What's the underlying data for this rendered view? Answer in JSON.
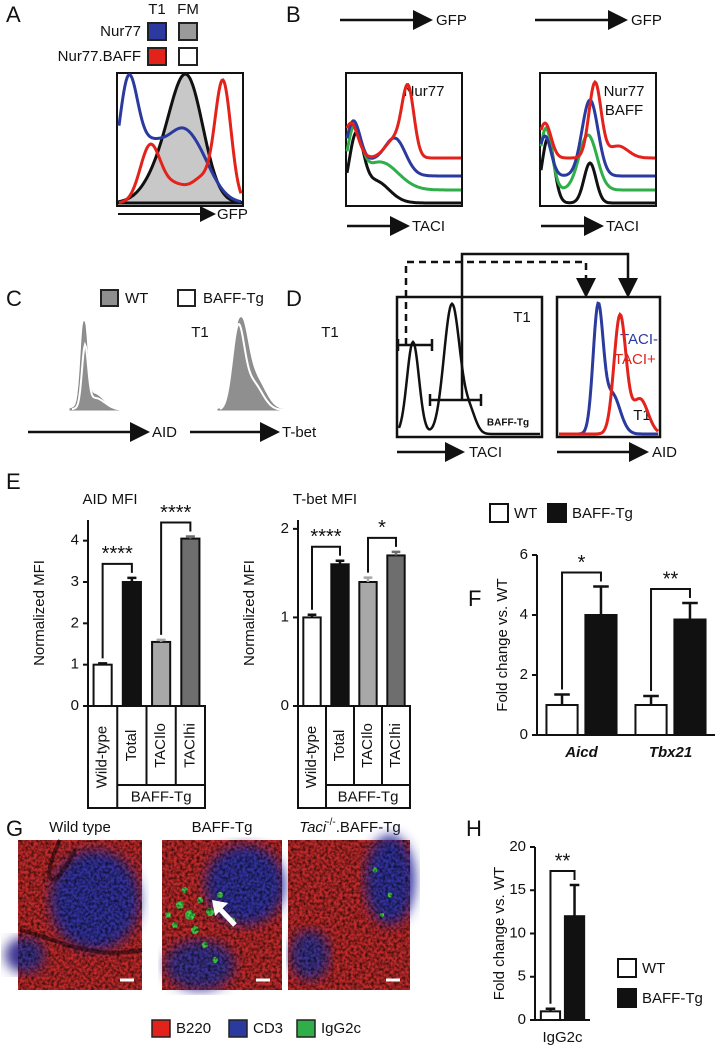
{
  "panels": {
    "A": {
      "label": "A",
      "legend_columns": [
        "T1",
        "FM"
      ],
      "legend_rows": [
        "Nur77",
        "Nur77.BAFF"
      ],
      "x_axis": "GFP"
    },
    "B": {
      "label": "B",
      "top_axis": [
        "GFP",
        "GFP"
      ],
      "plot_labels": [
        [
          "Nur77"
        ],
        [
          "Nur77",
          "BAFF"
        ]
      ],
      "x_axis": [
        "TACI",
        "TACI"
      ]
    },
    "C": {
      "label": "C",
      "legend": [
        "WT",
        "BAFF-Tg"
      ],
      "plot_labels": [
        "T1",
        "T1"
      ],
      "x_axis": [
        "AID",
        "T-bet"
      ]
    },
    "D": {
      "label": "D",
      "left_labels": [
        "T1",
        "BAFF-Tg"
      ],
      "right_legend": [
        "TACI-",
        "TACI+"
      ],
      "right_label": "T1",
      "x_axis": [
        "TACI",
        "AID"
      ]
    },
    "E": {
      "label": "E"
    },
    "F": {
      "label": "F"
    },
    "G": {
      "label": "G",
      "images": [
        "Wild type",
        "BAFF-Tg",
        {
          "gene": "Taci",
          "superscript": "-/-",
          "rest": ".BAFF-Tg"
        }
      ],
      "legend": [
        "B220",
        "CD3",
        "IgG2c"
      ]
    },
    "H": {
      "label": "H"
    }
  },
  "chart_data": [
    {
      "type": "bar",
      "title": "AID MFI",
      "y_label": "Normalized MFI",
      "categories": [
        "Wild-type",
        "Total",
        "TACIlo",
        "TACIhi"
      ],
      "group": {
        "label": "BAFF-Tg",
        "categories": [
          "Total",
          "TACIlo",
          "TACIhi"
        ]
      },
      "values": [
        1,
        3.0,
        1.55,
        4.05
      ],
      "errors": [
        0.03,
        0.1,
        0.05,
        0.05
      ],
      "colors": [
        "#ffffff",
        "#111111",
        "#a8a8a8",
        "#6e6e6e"
      ],
      "ylim": [
        0,
        4.5
      ],
      "yticks": [
        0,
        1,
        2,
        3,
        4
      ],
      "significance": [
        {
          "label": "****",
          "between": [
            "Wild-type",
            "Total"
          ]
        },
        {
          "label": "****",
          "between": [
            "TACIlo",
            "TACIhi"
          ]
        }
      ]
    },
    {
      "type": "bar",
      "title": "T-bet MFI",
      "y_label": "Normalized MFI",
      "categories": [
        "Wild-type",
        "Total",
        "TACIlo",
        "TACIhi"
      ],
      "group": {
        "label": "BAFF-Tg",
        "categories": [
          "Total",
          "TACIlo",
          "TACIhi"
        ]
      },
      "values": [
        1,
        1.6,
        1.4,
        1.7
      ],
      "errors": [
        0.03,
        0.04,
        0.05,
        0.04
      ],
      "colors": [
        "#ffffff",
        "#111111",
        "#a8a8a8",
        "#6e6e6e"
      ],
      "ylim": [
        0,
        2.1
      ],
      "yticks": [
        0,
        1,
        2
      ],
      "significance": [
        {
          "label": "****",
          "between": [
            "Wild-type",
            "Total"
          ]
        },
        {
          "label": "*",
          "between": [
            "TACIlo",
            "TACIhi"
          ]
        }
      ]
    },
    {
      "type": "bar",
      "y_label": "Fold change vs. WT",
      "categories": [
        "Aicd",
        "Tbx21"
      ],
      "series": [
        {
          "name": "WT",
          "color": "#ffffff",
          "values": [
            1,
            1
          ],
          "errors": [
            0.35,
            0.3
          ]
        },
        {
          "name": "BAFF-Tg",
          "color": "#111111",
          "values": [
            4.0,
            3.85
          ],
          "errors": [
            0.95,
            0.55
          ]
        }
      ],
      "ylim": [
        0,
        6
      ],
      "yticks": [
        0,
        2,
        4,
        6
      ],
      "significance": [
        "*",
        "**"
      ],
      "legend": "top"
    },
    {
      "type": "bar",
      "y_label": "Fold change vs. WT",
      "categories": [
        "IgG2c"
      ],
      "series": [
        {
          "name": "WT",
          "color": "#ffffff",
          "values": [
            1
          ],
          "errors": [
            0.3
          ]
        },
        {
          "name": "BAFF-Tg",
          "color": "#111111",
          "values": [
            12
          ],
          "errors": [
            3.6
          ]
        }
      ],
      "ylim": [
        0,
        20
      ],
      "yticks": [
        0,
        5,
        10,
        15,
        20
      ],
      "significance": [
        "**"
      ],
      "legend": "right"
    }
  ]
}
